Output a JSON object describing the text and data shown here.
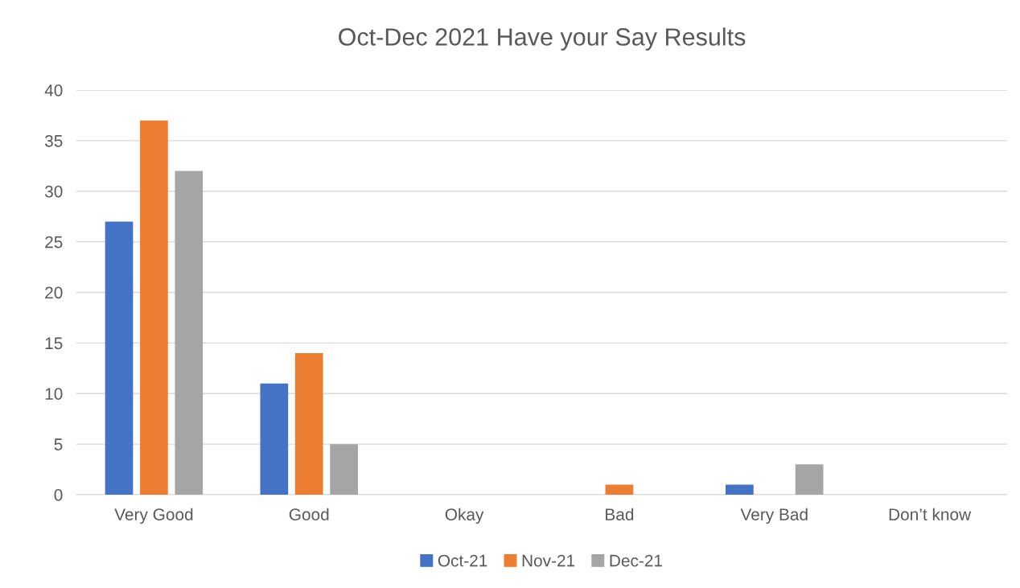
{
  "chart_data": {
    "type": "bar",
    "title": "Oct-Dec 2021 Have your Say Results",
    "categories": [
      "Very Good",
      "Good",
      "Okay",
      "Bad",
      "Very Bad",
      "Don’t know"
    ],
    "series": [
      {
        "name": "Oct-21",
        "color": "#4472c4",
        "values": [
          27,
          11,
          0,
          0,
          1,
          0
        ]
      },
      {
        "name": "Nov-21",
        "color": "#ed7d31",
        "values": [
          37,
          14,
          0,
          1,
          0,
          0
        ]
      },
      {
        "name": "Dec-21",
        "color": "#a5a5a5",
        "values": [
          32,
          5,
          0,
          0,
          3,
          0
        ]
      }
    ],
    "ylim": [
      0,
      40
    ],
    "yticks": [
      0,
      5,
      10,
      15,
      20,
      25,
      30,
      35,
      40
    ],
    "grid": "y",
    "legend": "bottom"
  }
}
